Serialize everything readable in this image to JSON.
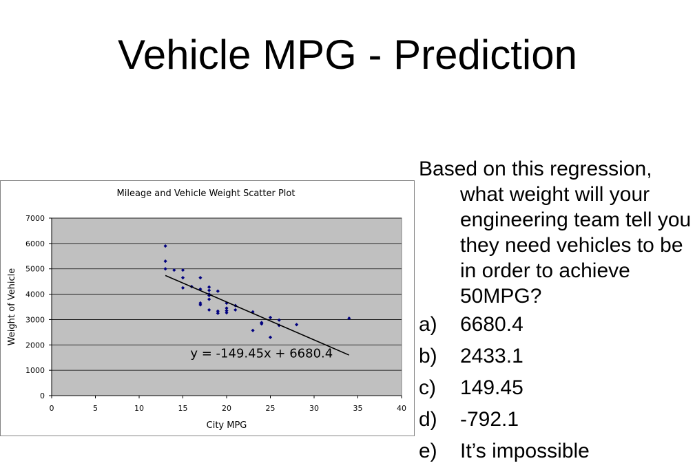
{
  "slide": {
    "title": "Vehicle MPG - Prediction"
  },
  "question": {
    "text": "Based on this regression, what weight will your engineering team tell you they need vehicles to be in order to achieve 50MPG?",
    "options": [
      {
        "letter": "a)",
        "value": "6680.4"
      },
      {
        "letter": "b)",
        "value": "2433.1"
      },
      {
        "letter": "c)",
        "value": "149.45"
      },
      {
        "letter": "d)",
        "value": "-792.1"
      },
      {
        "letter": "e)",
        "value": "It’s impossible"
      }
    ]
  },
  "colors": {
    "plot_background": "#c0c0c0",
    "marker": "#00007f",
    "trendline": "#000000",
    "gridline": "#000000"
  },
  "chart_data": {
    "type": "scatter",
    "title": "Mileage and Vehicle Weight Scatter Plot",
    "xlabel": "City MPG",
    "ylabel": "Weight of Vehicle",
    "xlim": [
      0,
      40
    ],
    "ylim": [
      0,
      7000
    ],
    "xticks": [
      "0",
      "5",
      "10",
      "15",
      "20",
      "25",
      "30",
      "35",
      "40"
    ],
    "yticks": [
      "0",
      "1000",
      "2000",
      "3000",
      "4000",
      "5000",
      "6000",
      "7000"
    ],
    "grid": true,
    "legend": "none",
    "trendline": {
      "equation": "y = -149.45x + 6680.4",
      "slope": -149.45,
      "intercept": 6680.4,
      "x_range": [
        13,
        34
      ]
    },
    "points": [
      {
        "x": 13,
        "y": 5900
      },
      {
        "x": 13,
        "y": 5300
      },
      {
        "x": 13,
        "y": 5000
      },
      {
        "x": 14,
        "y": 4950
      },
      {
        "x": 15,
        "y": 4950
      },
      {
        "x": 15,
        "y": 4650
      },
      {
        "x": 15,
        "y": 4250
      },
      {
        "x": 16,
        "y": 4300
      },
      {
        "x": 17,
        "y": 4650
      },
      {
        "x": 17,
        "y": 4200
      },
      {
        "x": 17,
        "y": 3650
      },
      {
        "x": 17,
        "y": 3580
      },
      {
        "x": 18,
        "y": 4280
      },
      {
        "x": 18,
        "y": 4150
      },
      {
        "x": 18,
        "y": 4000
      },
      {
        "x": 18,
        "y": 3950
      },
      {
        "x": 18,
        "y": 3800
      },
      {
        "x": 18,
        "y": 3380
      },
      {
        "x": 19,
        "y": 4120
      },
      {
        "x": 19,
        "y": 3330
      },
      {
        "x": 19,
        "y": 3250
      },
      {
        "x": 20,
        "y": 3650
      },
      {
        "x": 20,
        "y": 3450
      },
      {
        "x": 20,
        "y": 3350
      },
      {
        "x": 20,
        "y": 3270
      },
      {
        "x": 21,
        "y": 3550
      },
      {
        "x": 21,
        "y": 3380
      },
      {
        "x": 23,
        "y": 3300
      },
      {
        "x": 23,
        "y": 2570
      },
      {
        "x": 24,
        "y": 2880
      },
      {
        "x": 24,
        "y": 2830
      },
      {
        "x": 25,
        "y": 3080
      },
      {
        "x": 25,
        "y": 2300
      },
      {
        "x": 26,
        "y": 2980
      },
      {
        "x": 26,
        "y": 2770
      },
      {
        "x": 28,
        "y": 2800
      },
      {
        "x": 34,
        "y": 3050
      }
    ]
  }
}
